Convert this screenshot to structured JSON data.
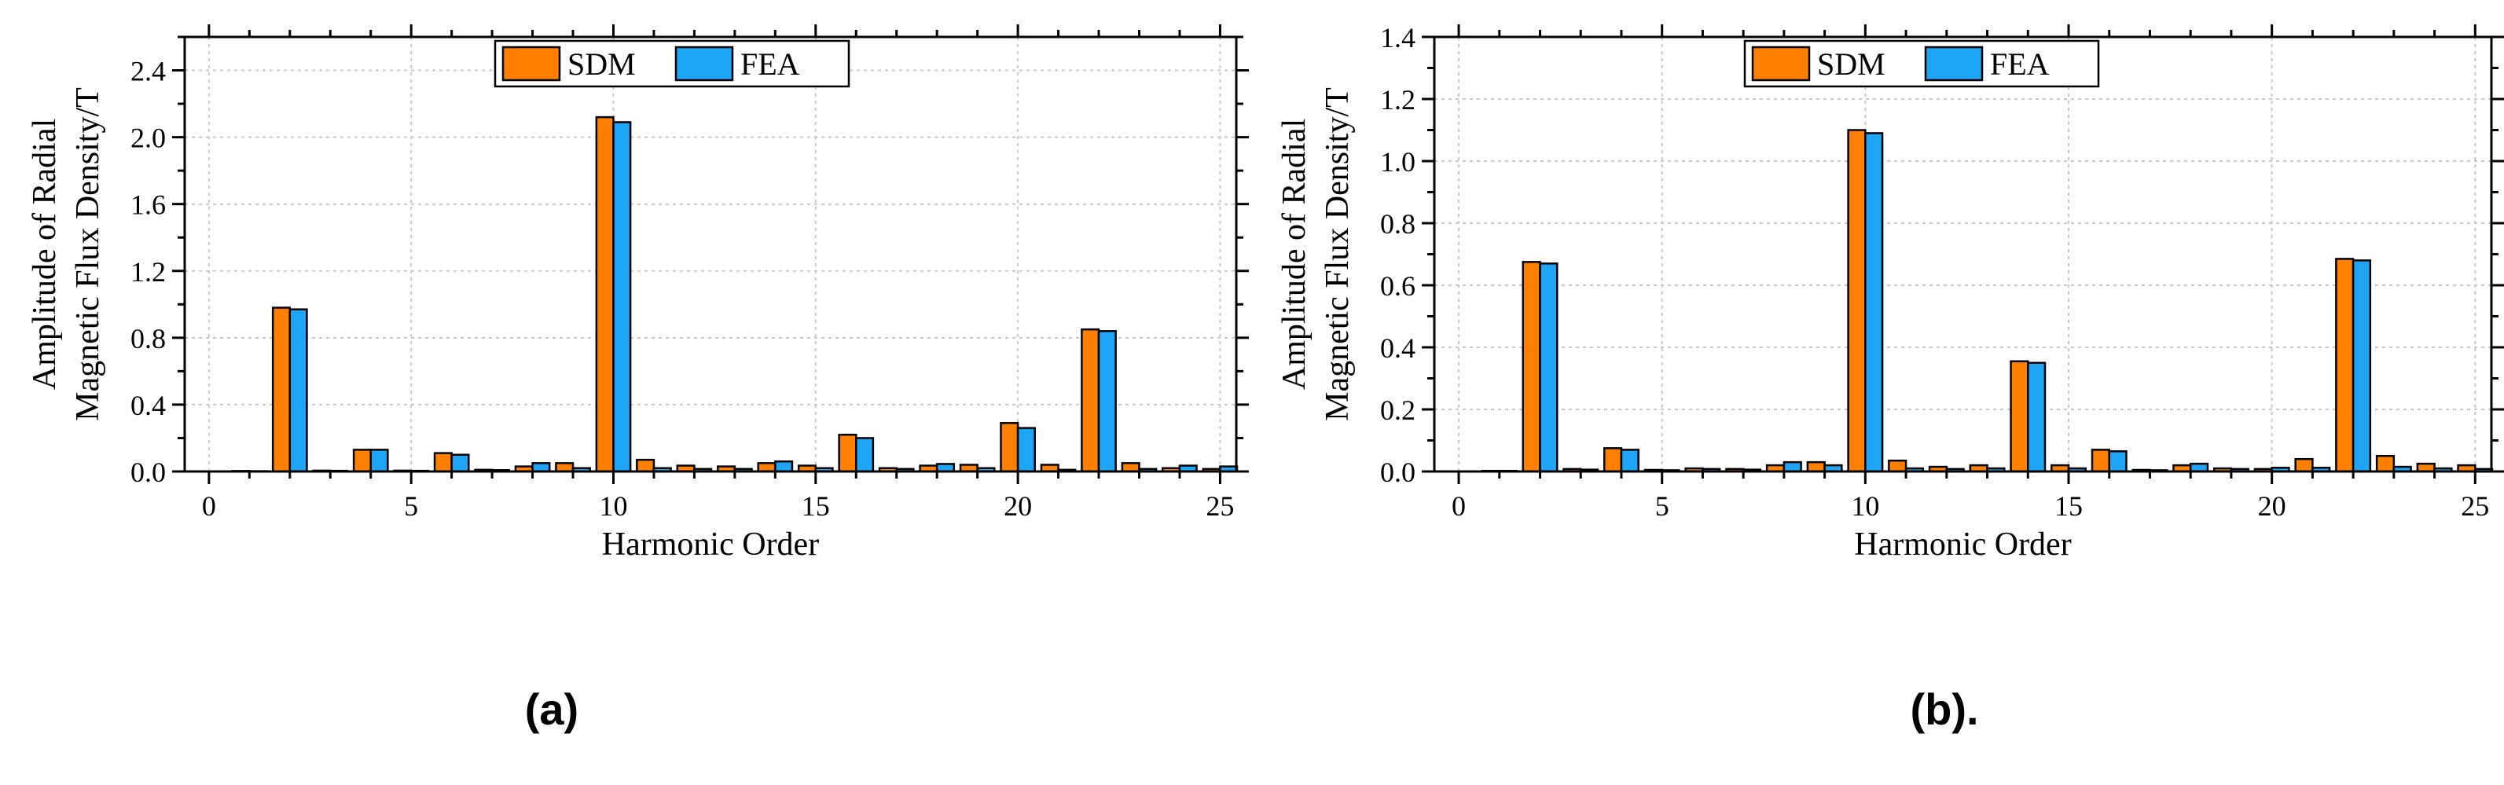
{
  "colors": {
    "sdm": "#FF8000",
    "fea": "#1EA5F5",
    "grid": "#C8C8C8",
    "bar_stroke": "#000000"
  },
  "chart_data": [
    {
      "type": "bar",
      "caption": "(a)",
      "xlabel": "Harmonic Order",
      "ylabel_line1": "Amplitude of Radial",
      "ylabel_line2": "Magnetic Flux Density/T",
      "xlim": [
        -0.6,
        25.4
      ],
      "ylim": [
        0,
        2.6
      ],
      "xticks": [
        0,
        5,
        10,
        15,
        20,
        25
      ],
      "xtick_labels": [
        "0",
        "5",
        "10",
        "15",
        "20",
        "25"
      ],
      "yticks": [
        0,
        0.4,
        0.8,
        1.2,
        1.6,
        2.0,
        2.4
      ],
      "ytick_labels": [
        "0.0",
        "0.4",
        "0.8",
        "1.2",
        "1.6",
        "2.0",
        "2.4"
      ],
      "grid": true,
      "legend_position": "top-center",
      "categories": [
        1,
        2,
        3,
        4,
        5,
        6,
        7,
        8,
        9,
        10,
        11,
        12,
        13,
        14,
        15,
        16,
        17,
        18,
        19,
        20,
        21,
        22,
        23,
        24,
        25
      ],
      "series": [
        {
          "name": "SDM",
          "values": [
            0.003,
            0.98,
            0.005,
            0.13,
            0.005,
            0.11,
            0.01,
            0.03,
            0.05,
            2.12,
            0.07,
            0.035,
            0.03,
            0.05,
            0.035,
            0.22,
            0.02,
            0.035,
            0.04,
            0.29,
            0.04,
            0.85,
            0.05,
            0.02,
            0.015
          ]
        },
        {
          "name": "FEA",
          "values": [
            0.002,
            0.97,
            0.004,
            0.13,
            0.004,
            0.1,
            0.008,
            0.05,
            0.02,
            2.09,
            0.02,
            0.015,
            0.015,
            0.06,
            0.02,
            0.2,
            0.015,
            0.045,
            0.02,
            0.26,
            0.01,
            0.84,
            0.015,
            0.035,
            0.03
          ]
        }
      ]
    },
    {
      "type": "bar",
      "caption": "(b).",
      "xlabel": "Harmonic Order",
      "ylabel_line1": "Amplitude of Radial",
      "ylabel_line2": "Magnetic Flux Density/T",
      "xlim": [
        -0.6,
        25.4
      ],
      "ylim": [
        0,
        1.4
      ],
      "xticks": [
        0,
        5,
        10,
        15,
        20,
        25
      ],
      "xtick_labels": [
        "0",
        "5",
        "10",
        "15",
        "20",
        "25"
      ],
      "yticks": [
        0,
        0.2,
        0.4,
        0.6,
        0.8,
        1.0,
        1.2,
        1.4
      ],
      "ytick_labels": [
        "0.0",
        "0.2",
        "0.4",
        "0.6",
        "0.8",
        "1.0",
        "1.2",
        "1.4"
      ],
      "grid": true,
      "legend_position": "top-center",
      "categories": [
        1,
        2,
        3,
        4,
        5,
        6,
        7,
        8,
        9,
        10,
        11,
        12,
        13,
        14,
        15,
        16,
        17,
        18,
        19,
        20,
        21,
        22,
        23,
        24,
        25
      ],
      "series": [
        {
          "name": "SDM",
          "values": [
            0.002,
            0.675,
            0.008,
            0.075,
            0.005,
            0.01,
            0.008,
            0.02,
            0.03,
            1.1,
            0.035,
            0.015,
            0.02,
            0.355,
            0.02,
            0.07,
            0.005,
            0.02,
            0.01,
            0.008,
            0.04,
            0.685,
            0.05,
            0.025,
            0.02
          ]
        },
        {
          "name": "FEA",
          "values": [
            0.002,
            0.67,
            0.006,
            0.07,
            0.004,
            0.008,
            0.006,
            0.03,
            0.02,
            1.09,
            0.01,
            0.008,
            0.01,
            0.35,
            0.01,
            0.065,
            0.004,
            0.025,
            0.008,
            0.012,
            0.012,
            0.68,
            0.015,
            0.01,
            0.008
          ]
        }
      ]
    }
  ]
}
